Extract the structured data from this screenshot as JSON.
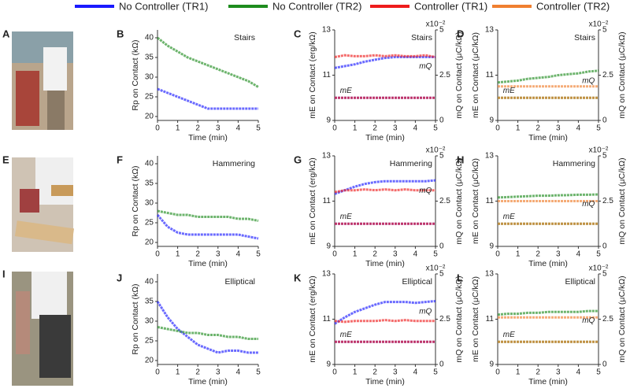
{
  "legend": [
    {
      "name": "No Controller (TR1)",
      "color": "#1a1aff"
    },
    {
      "name": "No Controller (TR2)",
      "color": "#1e8c1e"
    },
    {
      "name": "Controller (TR1)",
      "color": "#ee1c1c"
    },
    {
      "name": "Controller (TR2)",
      "color": "#f07f30"
    }
  ],
  "photos": [
    {
      "panel": "A"
    },
    {
      "panel": "E"
    },
    {
      "panel": "I"
    }
  ],
  "chart_data": [
    {
      "panel": "B",
      "type": "line",
      "title": "Stairs",
      "xlabel": "Time (min)",
      "ylabel": "Rp on Contact (kΩ)",
      "x": [
        0,
        0.5,
        1,
        1.5,
        2,
        2.5,
        3,
        3.5,
        4,
        4.5,
        5
      ],
      "xlim": [
        0,
        5
      ],
      "xticks": [
        0,
        1,
        2,
        3,
        4,
        5
      ],
      "ylim": [
        19,
        42
      ],
      "yticks": [
        20,
        25,
        30,
        35,
        40
      ],
      "series": [
        {
          "name": "No Controller (TR2)",
          "color": "#1e8c1e",
          "values": [
            40,
            38,
            36.5,
            35,
            34,
            33,
            32,
            31,
            30,
            29,
            27.5
          ]
        },
        {
          "name": "No Controller (TR1)",
          "color": "#1a1aff",
          "values": [
            27,
            26,
            25,
            24,
            23,
            22,
            22,
            22,
            22,
            22,
            22
          ]
        }
      ]
    },
    {
      "panel": "C",
      "type": "line",
      "title": "Stairs",
      "xlabel": "Time (min)",
      "ylabel": "mE on Contact (erg/kΩ)",
      "y2label": "mQ on Contact (μC/kΩ)",
      "y2_multiplier": "x10⁻²",
      "annotations": [
        "mQ",
        "mE"
      ],
      "x": [
        0,
        0.5,
        1,
        1.5,
        2,
        2.5,
        3,
        3.5,
        4,
        4.5,
        5
      ],
      "xlim": [
        0,
        5
      ],
      "xticks": [
        0,
        1,
        2,
        3,
        4,
        5
      ],
      "ylim": [
        9,
        13
      ],
      "yticks": [
        9,
        11,
        13
      ],
      "y2lim": [
        0,
        5
      ],
      "y2ticks": [
        0,
        2.5,
        5
      ],
      "series": [
        {
          "name": "No Controller (TR1)",
          "color": "#1a1aff",
          "axis": "y2",
          "values": [
            2.9,
            3.0,
            3.1,
            3.25,
            3.35,
            3.45,
            3.5,
            3.5,
            3.5,
            3.5,
            3.5
          ]
        },
        {
          "name": "Controller (TR1)",
          "color": "#ee1c1c",
          "axis": "y2",
          "values": [
            3.5,
            3.6,
            3.55,
            3.55,
            3.6,
            3.55,
            3.6,
            3.55,
            3.55,
            3.6,
            3.5
          ]
        },
        {
          "name": "No Controller (TR1)",
          "color": "#1a1aff",
          "values": [
            10,
            10,
            10,
            10,
            10,
            10,
            10,
            10,
            10,
            10,
            10
          ]
        },
        {
          "name": "Controller (TR1)",
          "color": "#ee1c1c",
          "values": [
            10,
            10,
            10,
            10,
            10,
            10,
            10,
            10,
            10,
            10,
            10
          ]
        }
      ]
    },
    {
      "panel": "D",
      "type": "line",
      "title": "Stairs",
      "xlabel": "Time (min)",
      "ylabel": "mE on Contact (μC/kΩ)",
      "y2label": "mQ on Contact (μC/kΩ)",
      "y2_multiplier": "x10⁻²",
      "annotations": [
        "mQ",
        "mE"
      ],
      "x": [
        0,
        0.5,
        1,
        1.5,
        2,
        2.5,
        3,
        3.5,
        4,
        4.5,
        5
      ],
      "xlim": [
        0,
        5
      ],
      "xticks": [
        0,
        1,
        2,
        3,
        4,
        5
      ],
      "ylim": [
        9,
        13
      ],
      "yticks": [
        9,
        11,
        13
      ],
      "y2lim": [
        0,
        5
      ],
      "y2ticks": [
        0,
        2.5,
        5
      ],
      "series": [
        {
          "name": "No Controller (TR2)",
          "color": "#1e8c1e",
          "axis": "y2",
          "values": [
            2.1,
            2.15,
            2.2,
            2.3,
            2.35,
            2.4,
            2.5,
            2.55,
            2.6,
            2.7,
            2.75
          ]
        },
        {
          "name": "Controller (TR2)",
          "color": "#f07f30",
          "axis": "y2",
          "values": [
            1.88,
            1.88,
            1.88,
            1.88,
            1.88,
            1.88,
            1.88,
            1.88,
            1.88,
            1.88,
            1.88
          ]
        },
        {
          "name": "No Controller (TR2)",
          "color": "#1e8c1e",
          "values": [
            10,
            10,
            10,
            10,
            10,
            10,
            10,
            10,
            10,
            10,
            10
          ]
        },
        {
          "name": "Controller (TR2)",
          "color": "#f07f30",
          "values": [
            10,
            10,
            10,
            10,
            10,
            10,
            10,
            10,
            10,
            10,
            10
          ]
        }
      ]
    },
    {
      "panel": "F",
      "type": "line",
      "title": "Hammering",
      "xlabel": "Time (min)",
      "ylabel": "Rp on Contact (kΩ)",
      "x": [
        0,
        0.5,
        1,
        1.5,
        2,
        2.5,
        3,
        3.5,
        4,
        4.5,
        5
      ],
      "xlim": [
        0,
        5
      ],
      "xticks": [
        0,
        1,
        2,
        3,
        4,
        5
      ],
      "ylim": [
        19,
        42
      ],
      "yticks": [
        20,
        25,
        30,
        35,
        40
      ],
      "series": [
        {
          "name": "No Controller (TR2)",
          "color": "#1e8c1e",
          "values": [
            28,
            27.5,
            27,
            27,
            26.5,
            26.5,
            26.5,
            26.5,
            26,
            26,
            25.5
          ]
        },
        {
          "name": "No Controller (TR1)",
          "color": "#1a1aff",
          "values": [
            27,
            24,
            22.5,
            22,
            22,
            22,
            22,
            22,
            22,
            21.5,
            21
          ]
        }
      ]
    },
    {
      "panel": "G",
      "type": "line",
      "title": "Hammering",
      "xlabel": "Time (min)",
      "ylabel": "mE on Contact (erg/kΩ)",
      "y2label": "mQ on Contact (μC/kΩ)",
      "y2_multiplier": "x10⁻²",
      "annotations": [
        "mQ",
        "mE"
      ],
      "x": [
        0,
        0.5,
        1,
        1.5,
        2,
        2.5,
        3,
        3.5,
        4,
        4.5,
        5
      ],
      "xlim": [
        0,
        5
      ],
      "xticks": [
        0,
        1,
        2,
        3,
        4,
        5
      ],
      "ylim": [
        9,
        13
      ],
      "yticks": [
        9,
        11,
        13
      ],
      "y2lim": [
        0,
        5
      ],
      "y2ticks": [
        0,
        2.5,
        5
      ],
      "series": [
        {
          "name": "No Controller (TR1)",
          "color": "#1a1aff",
          "axis": "y2",
          "values": [
            2.9,
            3.1,
            3.3,
            3.45,
            3.55,
            3.6,
            3.6,
            3.6,
            3.6,
            3.6,
            3.65
          ]
        },
        {
          "name": "Controller (TR1)",
          "color": "#ee1c1c",
          "axis": "y2",
          "values": [
            3.0,
            3.1,
            3.1,
            3.15,
            3.1,
            3.15,
            3.1,
            3.15,
            3.1,
            3.1,
            3.1
          ]
        },
        {
          "name": "No Controller (TR1)",
          "color": "#1a1aff",
          "values": [
            10,
            10,
            10,
            10,
            10,
            10,
            10,
            10,
            10,
            10,
            10
          ]
        },
        {
          "name": "Controller (TR1)",
          "color": "#ee1c1c",
          "values": [
            10,
            10,
            10,
            10,
            10,
            10,
            10,
            10,
            10,
            10,
            10
          ]
        }
      ]
    },
    {
      "panel": "H",
      "type": "line",
      "title": "Hammering",
      "xlabel": "Time (min)",
      "ylabel": "mE on Contact (μC/kΩ)",
      "y2label": "mQ on Contact (μC/kΩ)",
      "y2_multiplier": "x10⁻²",
      "annotations": [
        "mQ",
        "mE"
      ],
      "x": [
        0,
        0.5,
        1,
        1.5,
        2,
        2.5,
        3,
        3.5,
        4,
        4.5,
        5
      ],
      "xlim": [
        0,
        5
      ],
      "xticks": [
        0,
        1,
        2,
        3,
        4,
        5
      ],
      "ylim": [
        9,
        13
      ],
      "yticks": [
        9,
        11,
        13
      ],
      "y2lim": [
        0,
        5
      ],
      "y2ticks": [
        0,
        2.5,
        5
      ],
      "series": [
        {
          "name": "No Controller (TR2)",
          "color": "#1e8c1e",
          "axis": "y2",
          "values": [
            2.7,
            2.72,
            2.75,
            2.77,
            2.8,
            2.8,
            2.82,
            2.83,
            2.85,
            2.85,
            2.87
          ]
        },
        {
          "name": "Controller (TR2)",
          "color": "#f07f30",
          "axis": "y2",
          "values": [
            2.5,
            2.5,
            2.5,
            2.5,
            2.5,
            2.5,
            2.5,
            2.5,
            2.5,
            2.5,
            2.5
          ]
        },
        {
          "name": "No Controller (TR2)",
          "color": "#1e8c1e",
          "values": [
            10,
            10,
            10,
            10,
            10,
            10,
            10,
            10,
            10,
            10,
            10
          ]
        },
        {
          "name": "Controller (TR2)",
          "color": "#f07f30",
          "values": [
            10,
            10,
            10,
            10,
            10,
            10,
            10,
            10,
            10,
            10,
            10
          ]
        }
      ]
    },
    {
      "panel": "J",
      "type": "line",
      "title": "Elliptical",
      "xlabel": "Time (min)",
      "ylabel": "Rp on Contact (kΩ)",
      "x": [
        0,
        0.5,
        1,
        1.5,
        2,
        2.5,
        3,
        3.5,
        4,
        4.5,
        5
      ],
      "xlim": [
        0,
        5
      ],
      "xticks": [
        0,
        1,
        2,
        3,
        4,
        5
      ],
      "ylim": [
        19,
        42
      ],
      "yticks": [
        20,
        25,
        30,
        35,
        40
      ],
      "series": [
        {
          "name": "No Controller (TR1)",
          "color": "#1a1aff",
          "values": [
            35,
            31,
            28,
            26,
            24,
            23,
            22,
            22.5,
            22.5,
            22,
            22
          ]
        },
        {
          "name": "No Controller (TR2)",
          "color": "#1e8c1e",
          "values": [
            28.5,
            28,
            27.5,
            27,
            27,
            26.5,
            26.5,
            26,
            26,
            25.5,
            25.5
          ]
        }
      ]
    },
    {
      "panel": "K",
      "type": "line",
      "title": "Elliptical",
      "xlabel": "Time (min)",
      "ylabel": "mE on Contact (erg/kΩ)",
      "y2label": "mQ on Contact (μC/kΩ)",
      "y2_multiplier": "x10⁻²",
      "annotations": [
        "mQ",
        "mE"
      ],
      "x": [
        0,
        0.5,
        1,
        1.5,
        2,
        2.5,
        3,
        3.5,
        4,
        4.5,
        5
      ],
      "xlim": [
        0,
        5
      ],
      "xticks": [
        0,
        1,
        2,
        3,
        4,
        5
      ],
      "ylim": [
        9,
        13
      ],
      "yticks": [
        9,
        11,
        13
      ],
      "y2lim": [
        0,
        5
      ],
      "y2ticks": [
        0,
        2.5,
        5
      ],
      "series": [
        {
          "name": "No Controller (TR1)",
          "color": "#1a1aff",
          "axis": "y2",
          "values": [
            2.25,
            2.6,
            2.9,
            3.1,
            3.3,
            3.45,
            3.45,
            3.45,
            3.4,
            3.45,
            3.5
          ]
        },
        {
          "name": "Controller (TR1)",
          "color": "#ee1c1c",
          "axis": "y2",
          "values": [
            2.4,
            2.35,
            2.4,
            2.4,
            2.4,
            2.45,
            2.4,
            2.45,
            2.4,
            2.4,
            2.4
          ]
        },
        {
          "name": "No Controller (TR1)",
          "color": "#1a1aff",
          "values": [
            10,
            10,
            10,
            10,
            10,
            10,
            10,
            10,
            10,
            10,
            10
          ]
        },
        {
          "name": "Controller (TR1)",
          "color": "#ee1c1c",
          "values": [
            10,
            10,
            10,
            10,
            10,
            10,
            10,
            10,
            10,
            10,
            10
          ]
        }
      ]
    },
    {
      "panel": "L",
      "type": "line",
      "title": "Elliptical",
      "xlabel": "Time (min)",
      "ylabel": "mE on Contact (μC/kΩ)",
      "y2label": "mQ on Contact (μC/kΩ)",
      "y2_multiplier": "x10⁻²",
      "annotations": [
        "mQ",
        "mE"
      ],
      "x": [
        0,
        0.5,
        1,
        1.5,
        2,
        2.5,
        3,
        3.5,
        4,
        4.5,
        5
      ],
      "xlim": [
        0,
        5
      ],
      "xticks": [
        0,
        1,
        2,
        3,
        4,
        5
      ],
      "ylim": [
        9,
        13
      ],
      "yticks": [
        9,
        11,
        13
      ],
      "y2lim": [
        0,
        5
      ],
      "y2ticks": [
        0,
        2.5,
        5
      ],
      "series": [
        {
          "name": "No Controller (TR2)",
          "color": "#1e8c1e",
          "axis": "y2",
          "values": [
            2.75,
            2.8,
            2.8,
            2.85,
            2.85,
            2.9,
            2.9,
            2.9,
            2.9,
            2.95,
            2.95
          ]
        },
        {
          "name": "Controller (TR2)",
          "color": "#f07f30",
          "axis": "y2",
          "values": [
            2.6,
            2.6,
            2.6,
            2.6,
            2.6,
            2.6,
            2.6,
            2.6,
            2.6,
            2.6,
            2.6
          ]
        },
        {
          "name": "No Controller (TR2)",
          "color": "#1e8c1e",
          "values": [
            10,
            10,
            10,
            10,
            10,
            10,
            10,
            10,
            10,
            10,
            10
          ]
        },
        {
          "name": "Controller (TR2)",
          "color": "#f07f30",
          "values": [
            10,
            10,
            10,
            10,
            10,
            10,
            10,
            10,
            10,
            10,
            10
          ]
        }
      ]
    }
  ]
}
